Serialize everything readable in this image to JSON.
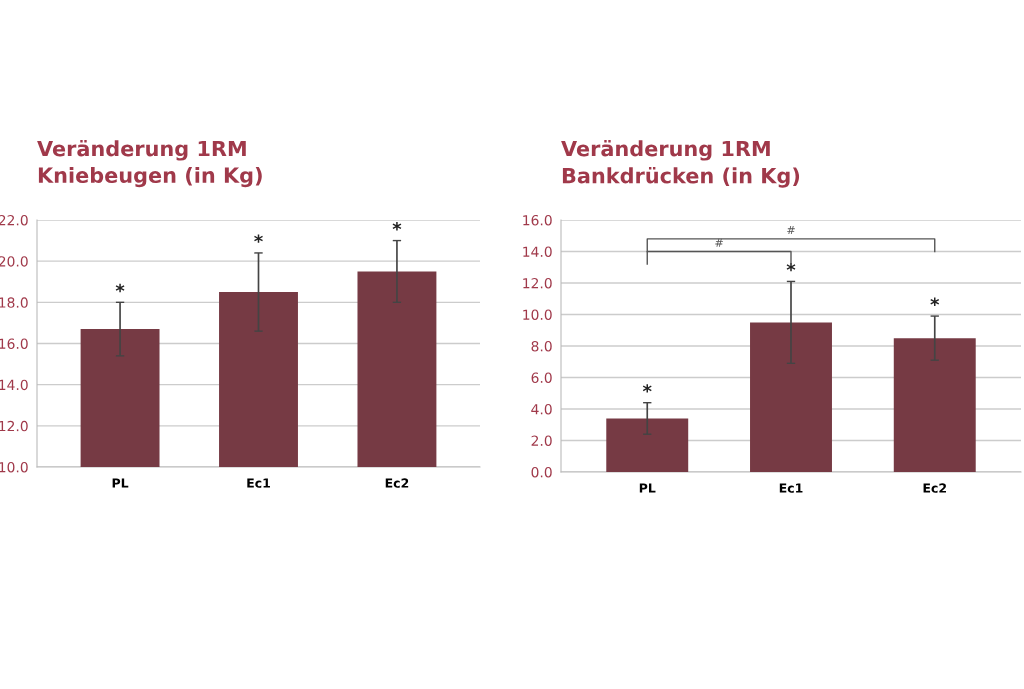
{
  "chart_data": [
    {
      "type": "bar",
      "title": "Veränderung 1RM\nKniebeugen (in Kg)",
      "categories": [
        "PL",
        "Ec1",
        "Ec2"
      ],
      "values": [
        16.7,
        18.5,
        19.5
      ],
      "errors": [
        1.3,
        1.9,
        1.5
      ],
      "color": "#763a44",
      "ylim": [
        10,
        22
      ],
      "yticks": [
        {
          "value": 10,
          "label": "10.0"
        },
        {
          "value": 12,
          "label": "12.0"
        },
        {
          "value": 14,
          "label": "14.0"
        },
        {
          "value": 16,
          "label": "16.0"
        },
        {
          "value": 18,
          "label": "18.0"
        },
        {
          "value": 20,
          "label": "20.0"
        },
        {
          "value": 22,
          "label": "22.0"
        }
      ],
      "grid": "y",
      "annotations": [
        "*",
        "*",
        "*"
      ]
    },
    {
      "type": "bar",
      "title": "Veränderung 1RM\nBankdrücken (in Kg)",
      "categories": [
        "PL",
        "Ec1",
        "Ec2"
      ],
      "values": [
        3.4,
        9.5,
        8.5
      ],
      "errors": [
        1.0,
        2.6,
        1.4
      ],
      "color": "#763a44",
      "ylim": [
        0,
        16
      ],
      "yticks": [
        {
          "value": 0,
          "label": "0.0"
        },
        {
          "value": 2,
          "label": "2.0"
        },
        {
          "value": 4,
          "label": "4.0"
        },
        {
          "value": 6,
          "label": "6.0"
        },
        {
          "value": 8,
          "label": "8.0"
        },
        {
          "value": 10,
          "label": "10.0"
        },
        {
          "value": 12,
          "label": "12.0"
        },
        {
          "value": 14,
          "label": "14.0"
        },
        {
          "value": 16,
          "label": "16.0"
        }
      ],
      "grid": "y",
      "annotations": [
        "*",
        "*",
        "*",
        "#",
        "#"
      ]
    }
  ]
}
